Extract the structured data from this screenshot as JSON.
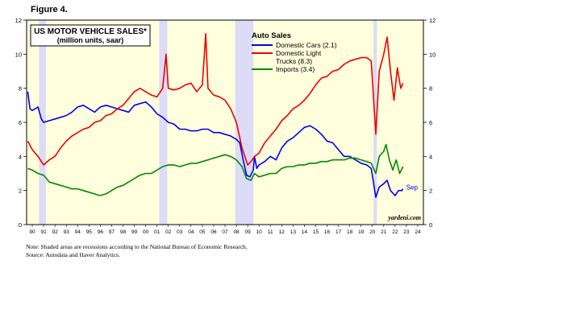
{
  "figure_label": "Figure 4.",
  "notes": {
    "line1": "Note: Shaded areas are recessions according to the National Bureau of Economic Research.",
    "line2": "Source: Autodata and Haver Analytics."
  },
  "chart_data": {
    "type": "line",
    "title": "US MOTOR VEHICLE SALES*",
    "subtitle": "(million units, saar)",
    "legend_title": "Auto Sales",
    "legend_position": "top-center",
    "watermark": "yardeni.com",
    "end_label": "Sep",
    "xlim": [
      1989.5,
      2024.5
    ],
    "ylim": [
      0,
      12
    ],
    "y_ticks": [
      "0",
      "2",
      "4",
      "6",
      "8",
      "10",
      "12"
    ],
    "x_ticks": [
      "90",
      "91",
      "92",
      "93",
      "94",
      "95",
      "96",
      "97",
      "98",
      "99",
      "00",
      "01",
      "02",
      "03",
      "04",
      "05",
      "06",
      "07",
      "08",
      "09",
      "10",
      "11",
      "12",
      "13",
      "14",
      "15",
      "16",
      "17",
      "18",
      "19",
      "20",
      "21",
      "22",
      "23",
      "24"
    ],
    "background_color": "#ffffdd",
    "recession_color": "#dcdcf8",
    "recessions": [
      [
        1990.6,
        1991.2
      ],
      [
        2001.2,
        2001.9
      ],
      [
        2007.9,
        2009.5
      ],
      [
        2020.1,
        2020.4
      ]
    ],
    "series": [
      {
        "name": "Domestic Cars (2.1)",
        "name_line2": "",
        "color": "#0000ee",
        "points": [
          [
            1989.6,
            7.8
          ],
          [
            1989.8,
            6.8
          ],
          [
            1990.0,
            6.7
          ],
          [
            1990.5,
            6.9
          ],
          [
            1990.8,
            6.2
          ],
          [
            1991.0,
            6.0
          ],
          [
            1991.5,
            6.1
          ],
          [
            1992.0,
            6.2
          ],
          [
            1992.5,
            6.3
          ],
          [
            1993.0,
            6.4
          ],
          [
            1993.5,
            6.6
          ],
          [
            1994.0,
            6.9
          ],
          [
            1994.5,
            7.0
          ],
          [
            1995.0,
            6.8
          ],
          [
            1995.5,
            6.6
          ],
          [
            1996.0,
            6.9
          ],
          [
            1996.5,
            7.0
          ],
          [
            1997.0,
            6.9
          ],
          [
            1997.5,
            6.8
          ],
          [
            1998.0,
            6.7
          ],
          [
            1998.5,
            6.6
          ],
          [
            1999.0,
            7.0
          ],
          [
            1999.5,
            7.1
          ],
          [
            2000.0,
            7.2
          ],
          [
            2000.5,
            6.9
          ],
          [
            2001.0,
            6.5
          ],
          [
            2001.5,
            6.3
          ],
          [
            2002.0,
            6.0
          ],
          [
            2002.5,
            5.9
          ],
          [
            2003.0,
            5.6
          ],
          [
            2003.5,
            5.6
          ],
          [
            2004.0,
            5.5
          ],
          [
            2004.5,
            5.5
          ],
          [
            2005.0,
            5.6
          ],
          [
            2005.5,
            5.6
          ],
          [
            2006.0,
            5.4
          ],
          [
            2006.5,
            5.4
          ],
          [
            2007.0,
            5.3
          ],
          [
            2007.5,
            5.2
          ],
          [
            2008.0,
            5.0
          ],
          [
            2008.3,
            4.8
          ],
          [
            2008.6,
            3.8
          ],
          [
            2008.9,
            2.9
          ],
          [
            2009.2,
            2.8
          ],
          [
            2009.5,
            3.2
          ],
          [
            2009.6,
            4.0
          ],
          [
            2009.8,
            3.3
          ],
          [
            2010.0,
            3.5
          ],
          [
            2010.5,
            3.7
          ],
          [
            2011.0,
            4.0
          ],
          [
            2011.5,
            3.8
          ],
          [
            2012.0,
            4.5
          ],
          [
            2012.5,
            4.9
          ],
          [
            2013.0,
            5.1
          ],
          [
            2013.5,
            5.4
          ],
          [
            2014.0,
            5.7
          ],
          [
            2014.5,
            5.8
          ],
          [
            2015.0,
            5.6
          ],
          [
            2015.5,
            5.3
          ],
          [
            2016.0,
            4.9
          ],
          [
            2016.5,
            4.8
          ],
          [
            2017.0,
            4.4
          ],
          [
            2017.5,
            4.0
          ],
          [
            2018.0,
            4.0
          ],
          [
            2018.5,
            3.8
          ],
          [
            2019.0,
            3.6
          ],
          [
            2019.5,
            3.5
          ],
          [
            2019.9,
            3.3
          ],
          [
            2020.3,
            1.6
          ],
          [
            2020.6,
            2.2
          ],
          [
            2021.0,
            2.4
          ],
          [
            2021.3,
            2.6
          ],
          [
            2021.6,
            2.0
          ],
          [
            2022.0,
            1.7
          ],
          [
            2022.3,
            2.0
          ],
          [
            2022.6,
            2.0
          ],
          [
            2022.7,
            2.1
          ]
        ]
      },
      {
        "name": "Domestic Light",
        "name_line2": "Trucks (8.3)",
        "color": "#ee0000",
        "points": [
          [
            1989.6,
            4.9
          ],
          [
            1990.0,
            4.4
          ],
          [
            1990.5,
            4.0
          ],
          [
            1991.0,
            3.5
          ],
          [
            1991.5,
            3.8
          ],
          [
            1992.0,
            4.0
          ],
          [
            1992.5,
            4.5
          ],
          [
            1993.0,
            4.9
          ],
          [
            1993.5,
            5.2
          ],
          [
            1994.0,
            5.4
          ],
          [
            1994.5,
            5.6
          ],
          [
            1995.0,
            5.7
          ],
          [
            1995.5,
            6.0
          ],
          [
            1996.0,
            6.1
          ],
          [
            1996.5,
            6.4
          ],
          [
            1997.0,
            6.5
          ],
          [
            1997.5,
            6.8
          ],
          [
            1998.0,
            7.0
          ],
          [
            1998.5,
            7.4
          ],
          [
            1999.0,
            7.8
          ],
          [
            1999.5,
            8.0
          ],
          [
            2000.0,
            7.8
          ],
          [
            2000.5,
            7.6
          ],
          [
            2001.0,
            7.5
          ],
          [
            2001.5,
            8.0
          ],
          [
            2001.8,
            10.0
          ],
          [
            2002.0,
            8.0
          ],
          [
            2002.5,
            7.9
          ],
          [
            2003.0,
            8.0
          ],
          [
            2003.5,
            8.2
          ],
          [
            2004.0,
            8.3
          ],
          [
            2004.5,
            7.8
          ],
          [
            2005.0,
            8.2
          ],
          [
            2005.3,
            11.2
          ],
          [
            2005.5,
            8.0
          ],
          [
            2006.0,
            7.6
          ],
          [
            2006.5,
            7.5
          ],
          [
            2007.0,
            7.3
          ],
          [
            2007.5,
            6.8
          ],
          [
            2008.0,
            6.0
          ],
          [
            2008.5,
            4.5
          ],
          [
            2009.0,
            3.5
          ],
          [
            2009.3,
            3.7
          ],
          [
            2009.6,
            4.0
          ],
          [
            2010.0,
            4.2
          ],
          [
            2010.5,
            4.8
          ],
          [
            2011.0,
            5.2
          ],
          [
            2011.5,
            5.6
          ],
          [
            2012.0,
            6.1
          ],
          [
            2012.5,
            6.4
          ],
          [
            2013.0,
            6.8
          ],
          [
            2013.5,
            7.0
          ],
          [
            2014.0,
            7.3
          ],
          [
            2014.5,
            7.7
          ],
          [
            2015.0,
            8.2
          ],
          [
            2015.5,
            8.6
          ],
          [
            2016.0,
            8.7
          ],
          [
            2016.5,
            9.0
          ],
          [
            2017.0,
            9.1
          ],
          [
            2017.5,
            9.4
          ],
          [
            2018.0,
            9.6
          ],
          [
            2018.5,
            9.7
          ],
          [
            2019.0,
            9.8
          ],
          [
            2019.5,
            9.8
          ],
          [
            2019.9,
            9.6
          ],
          [
            2020.3,
            5.3
          ],
          [
            2020.6,
            9.0
          ],
          [
            2021.0,
            10.0
          ],
          [
            2021.3,
            11.0
          ],
          [
            2021.6,
            9.0
          ],
          [
            2021.9,
            7.3
          ],
          [
            2022.2,
            9.2
          ],
          [
            2022.5,
            8.0
          ],
          [
            2022.7,
            8.3
          ]
        ]
      },
      {
        "name": "Imports (3.4)",
        "name_line2": "",
        "color": "#008800",
        "points": [
          [
            1989.6,
            3.3
          ],
          [
            1990.0,
            3.2
          ],
          [
            1990.5,
            3.0
          ],
          [
            1991.0,
            2.9
          ],
          [
            1991.5,
            2.5
          ],
          [
            1992.0,
            2.4
          ],
          [
            1992.5,
            2.3
          ],
          [
            1993.0,
            2.2
          ],
          [
            1993.5,
            2.1
          ],
          [
            1994.0,
            2.1
          ],
          [
            1994.5,
            2.0
          ],
          [
            1995.0,
            1.9
          ],
          [
            1995.5,
            1.8
          ],
          [
            1996.0,
            1.7
          ],
          [
            1996.5,
            1.8
          ],
          [
            1997.0,
            2.0
          ],
          [
            1997.5,
            2.2
          ],
          [
            1998.0,
            2.3
          ],
          [
            1998.5,
            2.5
          ],
          [
            1999.0,
            2.7
          ],
          [
            1999.5,
            2.9
          ],
          [
            2000.0,
            3.0
          ],
          [
            2000.5,
            3.0
          ],
          [
            2001.0,
            3.2
          ],
          [
            2001.5,
            3.4
          ],
          [
            2002.0,
            3.5
          ],
          [
            2002.5,
            3.5
          ],
          [
            2003.0,
            3.4
          ],
          [
            2003.5,
            3.5
          ],
          [
            2004.0,
            3.6
          ],
          [
            2004.5,
            3.6
          ],
          [
            2005.0,
            3.7
          ],
          [
            2005.5,
            3.8
          ],
          [
            2006.0,
            3.9
          ],
          [
            2006.5,
            4.0
          ],
          [
            2007.0,
            4.1
          ],
          [
            2007.5,
            4.0
          ],
          [
            2008.0,
            3.8
          ],
          [
            2008.5,
            3.4
          ],
          [
            2008.9,
            2.7
          ],
          [
            2009.3,
            2.6
          ],
          [
            2009.6,
            3.0
          ],
          [
            2010.0,
            2.8
          ],
          [
            2010.5,
            2.9
          ],
          [
            2011.0,
            3.0
          ],
          [
            2011.5,
            3.0
          ],
          [
            2012.0,
            3.3
          ],
          [
            2012.5,
            3.4
          ],
          [
            2013.0,
            3.4
          ],
          [
            2013.5,
            3.5
          ],
          [
            2014.0,
            3.5
          ],
          [
            2014.5,
            3.6
          ],
          [
            2015.0,
            3.6
          ],
          [
            2015.5,
            3.7
          ],
          [
            2016.0,
            3.7
          ],
          [
            2016.5,
            3.8
          ],
          [
            2017.0,
            3.8
          ],
          [
            2017.5,
            3.8
          ],
          [
            2018.0,
            3.9
          ],
          [
            2018.5,
            3.9
          ],
          [
            2019.0,
            3.8
          ],
          [
            2019.5,
            3.7
          ],
          [
            2019.9,
            3.6
          ],
          [
            2020.3,
            3.0
          ],
          [
            2020.6,
            4.0
          ],
          [
            2021.0,
            4.3
          ],
          [
            2021.2,
            4.7
          ],
          [
            2021.5,
            3.8
          ],
          [
            2021.8,
            3.2
          ],
          [
            2022.1,
            3.8
          ],
          [
            2022.4,
            3.0
          ],
          [
            2022.7,
            3.4
          ]
        ]
      }
    ]
  }
}
